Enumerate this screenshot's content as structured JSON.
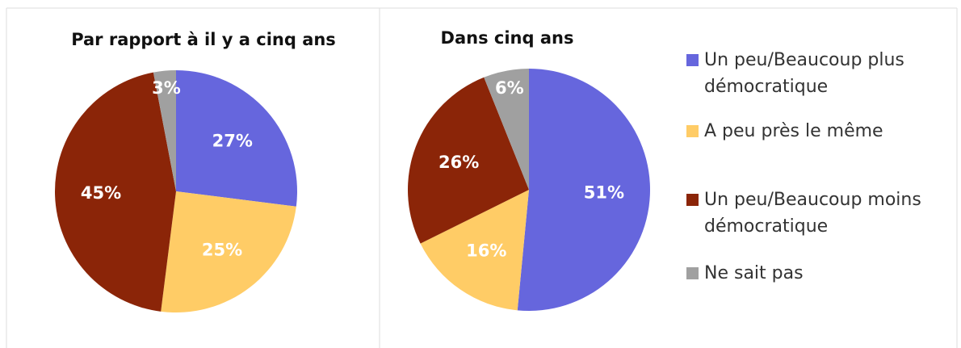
{
  "chart_data": [
    {
      "type": "pie",
      "title": "Par rapport à il y a cinq ans",
      "categories": [
        "Un peu/Beaucoup plus démocratique",
        "A peu près le même",
        "Un peu/Beaucoup moins démocratique",
        "Ne sait pas"
      ],
      "values": [
        27,
        25,
        45,
        3
      ],
      "value_labels": [
        "27%",
        "25%",
        "45%",
        "3%"
      ],
      "colors": [
        "#6666dd",
        "#ffcc66",
        "#8b2508",
        "#a0a0a0"
      ]
    },
    {
      "type": "pie",
      "title": "Dans cinq ans",
      "categories": [
        "Un peu/Beaucoup plus démocratique",
        "A peu près le même",
        "Un peu/Beaucoup moins démocratique",
        "Ne sait pas"
      ],
      "values": [
        51,
        16,
        26,
        6
      ],
      "value_labels": [
        "51%",
        "16%",
        "26%",
        "6%"
      ],
      "colors": [
        "#6666dd",
        "#ffcc66",
        "#8b2508",
        "#a0a0a0"
      ],
      "legend": "right"
    }
  ]
}
